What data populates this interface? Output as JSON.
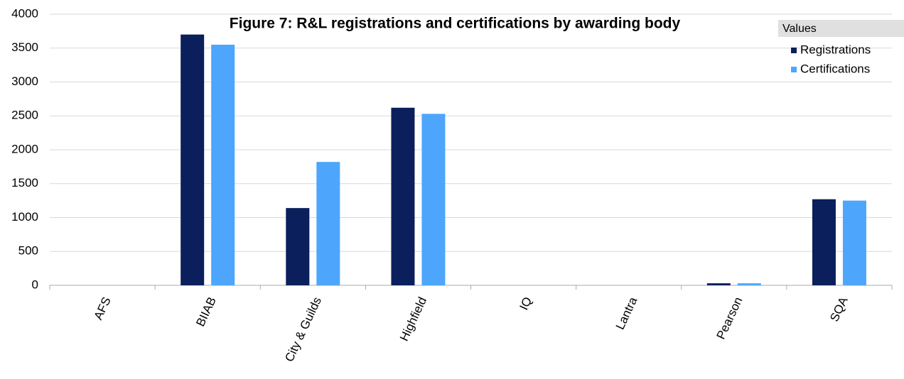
{
  "chart_data": {
    "type": "bar",
    "title": "Figure 7: R&L registrations and certifications by awarding body",
    "legend_title": "Values",
    "legend": "upper right",
    "grid": true,
    "categories": [
      "AFS",
      "BIIAB",
      "City & Guilds",
      "Highfield",
      "IQ",
      "Lantra",
      "Pearson",
      "SQA"
    ],
    "series": [
      {
        "name": "Registrations",
        "color": "#0a1f5c",
        "values": [
          0,
          3700,
          1140,
          2620,
          0,
          0,
          30,
          1270
        ]
      },
      {
        "name": "Certifications",
        "color": "#4da6fc",
        "values": [
          0,
          3550,
          1820,
          2530,
          0,
          0,
          30,
          1250
        ]
      }
    ],
    "ylim": [
      0,
      4000
    ],
    "yticks": [
      0,
      500,
      1000,
      1500,
      2000,
      2500,
      3000,
      3500,
      4000
    ]
  }
}
